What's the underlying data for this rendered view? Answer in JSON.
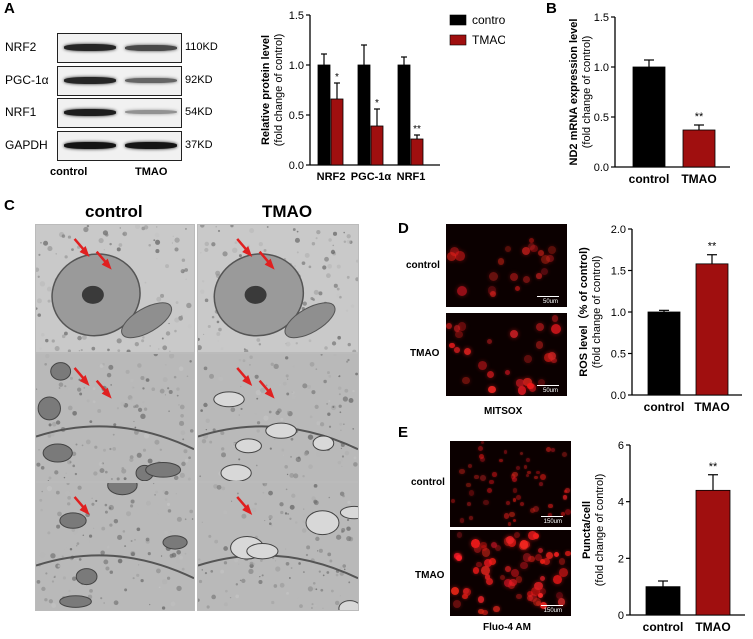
{
  "panels": {
    "A": {
      "letter": "A",
      "blot_labels": [
        "NRF2",
        "PGC-1α",
        "NRF1",
        "GAPDH"
      ],
      "kd_labels": [
        "110KD",
        "92KD",
        "54KD",
        "37KD"
      ],
      "lane_labels": [
        "control",
        "TMAO"
      ],
      "band_intensity": {
        "control": [
          0.9,
          0.9,
          0.95,
          1.0
        ],
        "TMAO": [
          0.7,
          0.55,
          0.3,
          1.0
        ]
      }
    },
    "B": {
      "letter": "B"
    },
    "C": {
      "letter": "C",
      "col_labels": [
        "control",
        "TMAO"
      ]
    },
    "D": {
      "letter": "D",
      "row_labels": [
        "control",
        "TMAO"
      ],
      "caption": "MITSOX",
      "scalebar": "50um"
    },
    "E": {
      "letter": "E",
      "row_labels": [
        "control",
        "TMAO"
      ],
      "caption": "Fluo-4 AM",
      "scalebar": "150um"
    }
  },
  "colors": {
    "control": "#000000",
    "TMAO": "#a00f0f",
    "arrow": "#e02020"
  },
  "chart_data": [
    {
      "id": "chartA",
      "type": "bar",
      "categories": [
        "NRF2",
        "PGC-1α",
        "NRF1"
      ],
      "series": [
        {
          "name": "control",
          "values": [
            1.0,
            1.0,
            1.0
          ],
          "errors": [
            0.11,
            0.2,
            0.08
          ],
          "sig": [
            "",
            "",
            ""
          ]
        },
        {
          "name": "TMAO",
          "values": [
            0.66,
            0.39,
            0.26
          ],
          "errors": [
            0.16,
            0.17,
            0.04
          ],
          "sig": [
            "*",
            "*",
            "**"
          ]
        }
      ],
      "ylabel": "Relative protein level",
      "ylabel2": "(fold change of control)",
      "ylim": [
        0,
        1.5
      ],
      "yticks": [
        "0.0",
        "0.5",
        "1.0",
        "1.5"
      ],
      "legend": [
        "control",
        "TMAO"
      ],
      "legend_position": "top-right"
    },
    {
      "id": "chartB",
      "type": "bar",
      "categories": [
        "control",
        "TMAO"
      ],
      "values": [
        1.0,
        0.37
      ],
      "errors": [
        0.07,
        0.05
      ],
      "sig": [
        "",
        "**"
      ],
      "ylabel": "ND2 mRNA expression level",
      "ylabel2": "(fold change of control)",
      "ylim": [
        0,
        1.5
      ],
      "yticks": [
        "0.0",
        "0.5",
        "1.0",
        "1.5"
      ]
    },
    {
      "id": "chartD",
      "type": "bar",
      "categories": [
        "control",
        "TMAO"
      ],
      "values": [
        1.0,
        1.58
      ],
      "errors": [
        0.02,
        0.11
      ],
      "sig": [
        "",
        "**"
      ],
      "ylabel": "ROS level（% of control)",
      "ylabel2": "(fold change of control)",
      "ylim": [
        0,
        2.0
      ],
      "yticks": [
        "0.0",
        "0.5",
        "1.0",
        "1.5",
        "2.0"
      ]
    },
    {
      "id": "chartE",
      "type": "bar",
      "categories": [
        "control",
        "TMAO"
      ],
      "values": [
        1.0,
        4.4
      ],
      "errors": [
        0.2,
        0.55
      ],
      "sig": [
        "",
        "**"
      ],
      "ylabel": "Puncta/cell",
      "ylabel2": "(fold change of control)",
      "ylim": [
        0,
        6
      ],
      "yticks": [
        "0",
        "2",
        "4",
        "6"
      ]
    }
  ]
}
